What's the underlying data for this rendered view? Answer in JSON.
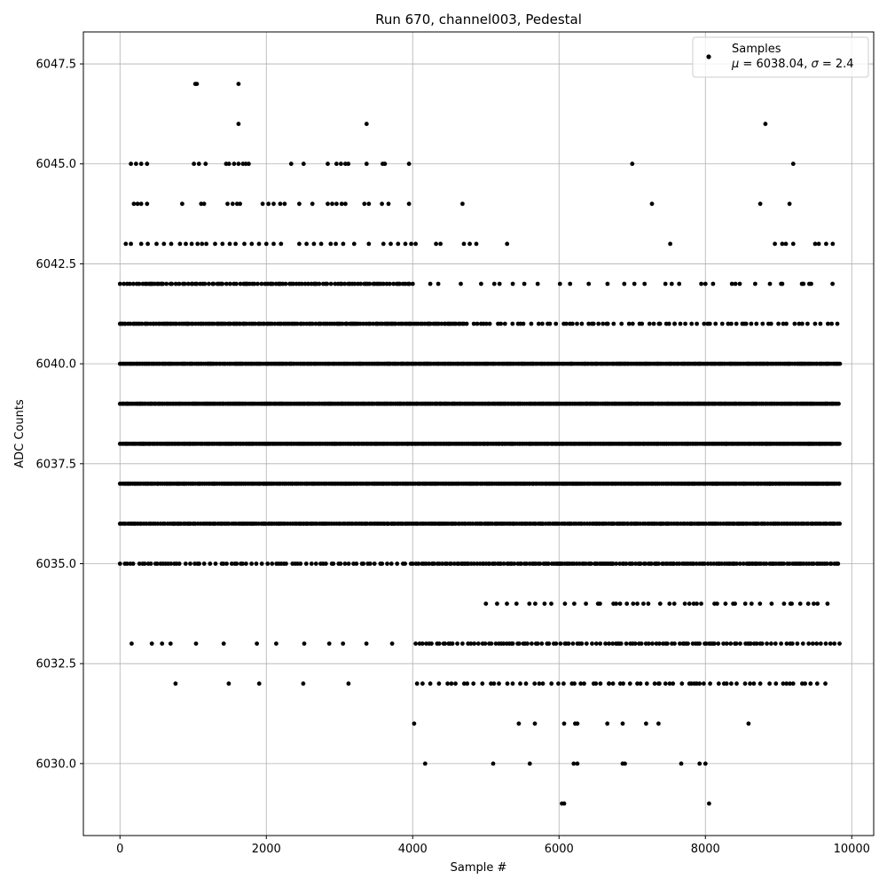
{
  "chart_data": {
    "type": "scatter",
    "title": "Run 670, channel003, Pedestal",
    "xlabel": "Sample #",
    "ylabel": "ADC Counts",
    "xlim": [
      -500,
      10300
    ],
    "ylim": [
      6028.2,
      6048.3
    ],
    "xticks": [
      0,
      2000,
      4000,
      6000,
      8000,
      10000
    ],
    "xtick_labels": [
      "0",
      "2000",
      "4000",
      "6000",
      "8000",
      "10000"
    ],
    "yticks": [
      6030.0,
      6032.5,
      6035.0,
      6037.5,
      6040.0,
      6042.5,
      6045.0,
      6047.5
    ],
    "ytick_labels": [
      "6030.0",
      "6032.5",
      "6035.0",
      "6037.5",
      "6040.0",
      "6042.5",
      "6045.0",
      "6047.5"
    ],
    "grid": true,
    "legend_position": "top-right",
    "marker_color": "#000000",
    "series": [
      {
        "name": "Samples",
        "label_line2_parts": [
          "μ",
          " = 6038.04, ",
          "σ",
          " = 2.4"
        ],
        "points": [
          [
            1030,
            6047
          ],
          [
            1050,
            6047
          ],
          [
            1620,
            6047
          ],
          [
            1620,
            6046
          ],
          [
            3370,
            6046
          ],
          [
            8820,
            6046
          ],
          [
            150,
            6045
          ],
          [
            220,
            6045
          ],
          [
            290,
            6045
          ],
          [
            370,
            6045
          ],
          [
            1010,
            6045
          ],
          [
            1080,
            6045
          ],
          [
            1170,
            6045
          ],
          [
            1450,
            6045
          ],
          [
            1490,
            6045
          ],
          [
            1560,
            6045
          ],
          [
            1620,
            6045
          ],
          [
            1680,
            6045
          ],
          [
            1720,
            6045
          ],
          [
            1760,
            6045
          ],
          [
            2340,
            6045
          ],
          [
            2510,
            6045
          ],
          [
            2840,
            6045
          ],
          [
            2960,
            6045
          ],
          [
            3020,
            6045
          ],
          [
            3080,
            6045
          ],
          [
            3120,
            6045
          ],
          [
            3370,
            6045
          ],
          [
            3590,
            6045
          ],
          [
            3620,
            6045
          ],
          [
            3950,
            6045
          ],
          [
            7000,
            6045
          ],
          [
            9200,
            6045
          ],
          [
            190,
            6044
          ],
          [
            240,
            6044
          ],
          [
            290,
            6044
          ],
          [
            370,
            6044
          ],
          [
            850,
            6044
          ],
          [
            1110,
            6044
          ],
          [
            1150,
            6044
          ],
          [
            1470,
            6044
          ],
          [
            1540,
            6044
          ],
          [
            1600,
            6044
          ],
          [
            1640,
            6044
          ],
          [
            1950,
            6044
          ],
          [
            2030,
            6044
          ],
          [
            2100,
            6044
          ],
          [
            2190,
            6044
          ],
          [
            2250,
            6044
          ],
          [
            2450,
            6044
          ],
          [
            2630,
            6044
          ],
          [
            2840,
            6044
          ],
          [
            2900,
            6044
          ],
          [
            2960,
            6044
          ],
          [
            3030,
            6044
          ],
          [
            3080,
            6044
          ],
          [
            3340,
            6044
          ],
          [
            3400,
            6044
          ],
          [
            3580,
            6044
          ],
          [
            3670,
            6044
          ],
          [
            3950,
            6044
          ],
          [
            4680,
            6044
          ],
          [
            7270,
            6044
          ],
          [
            8750,
            6044
          ],
          [
            9150,
            6044
          ],
          [
            80,
            6043
          ],
          [
            150,
            6043
          ],
          [
            290,
            6043
          ],
          [
            380,
            6043
          ],
          [
            500,
            6043
          ],
          [
            600,
            6043
          ],
          [
            700,
            6043
          ],
          [
            820,
            6043
          ],
          [
            900,
            6043
          ],
          [
            980,
            6043
          ],
          [
            1060,
            6043
          ],
          [
            1120,
            6043
          ],
          [
            1180,
            6043
          ],
          [
            1300,
            6043
          ],
          [
            1400,
            6043
          ],
          [
            1500,
            6043
          ],
          [
            1580,
            6043
          ],
          [
            1700,
            6043
          ],
          [
            1800,
            6043
          ],
          [
            1900,
            6043
          ],
          [
            2000,
            6043
          ],
          [
            2100,
            6043
          ],
          [
            2200,
            6043
          ],
          [
            2450,
            6043
          ],
          [
            2550,
            6043
          ],
          [
            2650,
            6043
          ],
          [
            2750,
            6043
          ],
          [
            2880,
            6043
          ],
          [
            2950,
            6043
          ],
          [
            3050,
            6043
          ],
          [
            3200,
            6043
          ],
          [
            3400,
            6043
          ],
          [
            3600,
            6043
          ],
          [
            3700,
            6043
          ],
          [
            3800,
            6043
          ],
          [
            3900,
            6043
          ],
          [
            3980,
            6043
          ],
          [
            4040,
            6043
          ],
          [
            4320,
            6043
          ],
          [
            4380,
            6043
          ],
          [
            4700,
            6043
          ],
          [
            4780,
            6043
          ],
          [
            4870,
            6043
          ],
          [
            5290,
            6043
          ],
          [
            7520,
            6043
          ],
          [
            8950,
            6043
          ],
          [
            9050,
            6043
          ],
          [
            9100,
            6043
          ],
          [
            9200,
            6043
          ],
          [
            9500,
            6043
          ],
          [
            9550,
            6043
          ],
          [
            9650,
            6043
          ],
          [
            9740,
            6043
          ],
          [
            7540,
            6042
          ],
          [
            8000,
            6042
          ],
          [
            8410,
            6042
          ],
          [
            9050,
            6042
          ],
          [
            9340,
            6042
          ],
          [
            9420,
            6042
          ],
          [
            6150,
            6041
          ],
          [
            6450,
            6041
          ],
          [
            6650,
            6041
          ],
          [
            7380,
            6041
          ],
          [
            7580,
            6041
          ],
          [
            6350,
            6040
          ],
          [
            6850,
            6040
          ],
          [
            7180,
            6040
          ],
          [
            6630,
            6039
          ],
          [
            7750,
            6039
          ],
          [
            6560,
            6034
          ],
          [
            6780,
            6034
          ],
          [
            7070,
            6034
          ],
          [
            7220,
            6034
          ],
          [
            7510,
            6034
          ],
          [
            7720,
            6034
          ],
          [
            7840,
            6034
          ],
          [
            8160,
            6034
          ],
          [
            8380,
            6034
          ],
          [
            9180,
            6034
          ],
          [
            9480,
            6034
          ],
          [
            6680,
            6032
          ],
          [
            7360,
            6032
          ],
          [
            7880,
            6032
          ],
          [
            8290,
            6032
          ],
          [
            8610,
            6032
          ],
          [
            4020,
            6031
          ],
          [
            5450,
            6031
          ],
          [
            5670,
            6031
          ],
          [
            6070,
            6031
          ],
          [
            6220,
            6031
          ],
          [
            6250,
            6031
          ],
          [
            6660,
            6031
          ],
          [
            6870,
            6031
          ],
          [
            7190,
            6031
          ],
          [
            7360,
            6031
          ],
          [
            8590,
            6031
          ],
          [
            4170,
            6030
          ],
          [
            5100,
            6030
          ],
          [
            5600,
            6030
          ],
          [
            6200,
            6030
          ],
          [
            6250,
            6030
          ],
          [
            6870,
            6030
          ],
          [
            6900,
            6030
          ],
          [
            7670,
            6030
          ],
          [
            7920,
            6030
          ],
          [
            8000,
            6030
          ],
          [
            6040,
            6029
          ],
          [
            6070,
            6029
          ],
          [
            8050,
            6029
          ]
        ],
        "bands": [
          {
            "y": 6042,
            "x_from": 0,
            "x_to": 4000,
            "step": 34
          },
          {
            "y": 6042,
            "x_from": 4000,
            "x_to": 9820,
            "step": 190
          },
          {
            "y": 6041,
            "x_from": 0,
            "x_to": 4700,
            "step": 26
          },
          {
            "y": 6041,
            "x_from": 4700,
            "x_to": 9820,
            "step": 70
          },
          {
            "y": 6040,
            "x_from": 0,
            "x_to": 9840,
            "step": 18
          },
          {
            "y": 6039,
            "x_from": 0,
            "x_to": 9840,
            "step": 18
          },
          {
            "y": 6038,
            "x_from": 0,
            "x_to": 9840,
            "step": 18
          },
          {
            "y": 6037,
            "x_from": 0,
            "x_to": 9840,
            "step": 20
          },
          {
            "y": 6036,
            "x_from": 0,
            "x_to": 9840,
            "step": 24
          },
          {
            "y": 6035,
            "x_from": 0,
            "x_to": 4000,
            "step": 55
          },
          {
            "y": 6035,
            "x_from": 4000,
            "x_to": 9820,
            "step": 30
          },
          {
            "y": 6034,
            "x_from": 5000,
            "x_to": 9820,
            "step": 140
          },
          {
            "y": 6033,
            "x_from": 160,
            "x_to": 4000,
            "step": 310
          },
          {
            "y": 6033,
            "x_from": 4040,
            "x_to": 9840,
            "step": 48
          },
          {
            "y": 6032,
            "x_from": 760,
            "x_to": 3480,
            "step": 900
          },
          {
            "y": 6032,
            "x_from": 4060,
            "x_to": 9720,
            "step": 80
          }
        ]
      }
    ]
  }
}
